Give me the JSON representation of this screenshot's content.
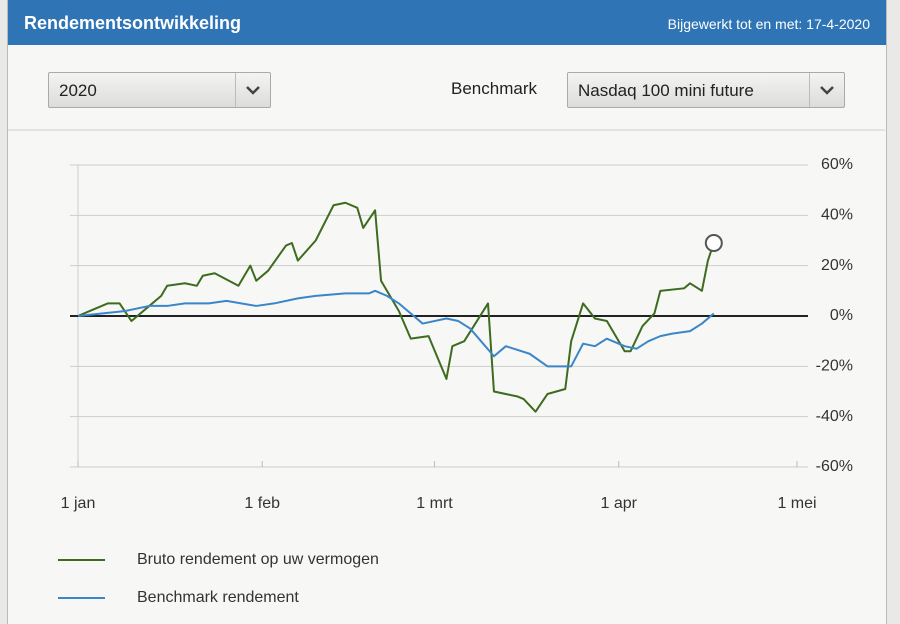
{
  "header": {
    "title": "Rendementsontwikkeling",
    "updated": "Bijgewerkt tot en met: 17-4-2020"
  },
  "controls": {
    "year": "2020",
    "benchmark_label": "Benchmark",
    "benchmark": "Nasdaq 100 mini future"
  },
  "chart_data": {
    "type": "line",
    "xlim": [
      0,
      121
    ],
    "xticks": [
      {
        "value": 0,
        "label": "1 jan"
      },
      {
        "value": 31,
        "label": "1 feb"
      },
      {
        "value": 60,
        "label": "1 mrt"
      },
      {
        "value": 91,
        "label": "1 apr"
      },
      {
        "value": 121,
        "label": "1 mei"
      }
    ],
    "ylim": [
      -60,
      60
    ],
    "yticks": [
      {
        "value": 60,
        "label": "60%"
      },
      {
        "value": 40,
        "label": "40%"
      },
      {
        "value": 20,
        "label": "20%"
      },
      {
        "value": 0,
        "label": "0%"
      },
      {
        "value": -20,
        "label": "-20%"
      },
      {
        "value": -40,
        "label": "-40%"
      },
      {
        "value": -60,
        "label": "-60%"
      }
    ],
    "grid": true,
    "legend": "bottom-left",
    "series": [
      {
        "name": "Bruto rendement op uw vermogen",
        "color": "#3d6b1f",
        "x": [
          0,
          2,
          5,
          7,
          9,
          12,
          14,
          15,
          18,
          20,
          21,
          23,
          27,
          29,
          30,
          32,
          35,
          36,
          37,
          40,
          43,
          45,
          47,
          48,
          50,
          51,
          54,
          56,
          59,
          62,
          63,
          65,
          69,
          70,
          74,
          75,
          77,
          79,
          82,
          83,
          85,
          87,
          89,
          92,
          93,
          95,
          97,
          98,
          102,
          103,
          105,
          106,
          107
        ],
        "values": [
          0,
          2,
          5,
          5,
          -2,
          4,
          8,
          12,
          13,
          12,
          16,
          17,
          12,
          20,
          14,
          18,
          28,
          29,
          22,
          30,
          44,
          45,
          43,
          35,
          42,
          14,
          2,
          -9,
          -8,
          -25,
          -12,
          -10,
          5,
          -30,
          -32,
          -33,
          -38,
          -31,
          -29,
          -10,
          5,
          -1,
          -2,
          -14,
          -14,
          -4,
          1,
          10,
          11,
          13,
          10,
          22,
          29
        ]
      },
      {
        "name": "Benchmark rendement",
        "color": "#3a86c8",
        "x": [
          0,
          4,
          8,
          12,
          15,
          18,
          22,
          25,
          30,
          33,
          37,
          40,
          45,
          49,
          50,
          52,
          54,
          56,
          58,
          62,
          64,
          66,
          70,
          72,
          76,
          79,
          83,
          85,
          87,
          89,
          92,
          94,
          96,
          98,
          100,
          103,
          105,
          107
        ],
        "values": [
          0,
          1,
          2,
          4,
          4,
          5,
          5,
          6,
          4,
          5,
          7,
          8,
          9,
          9,
          10,
          8,
          5,
          1,
          -3,
          -1,
          -2,
          -5,
          -16,
          -12,
          -15,
          -20,
          -20,
          -11,
          -12,
          -9,
          -12,
          -13,
          -10,
          -8,
          -7,
          -6,
          -3,
          1
        ]
      }
    ]
  }
}
